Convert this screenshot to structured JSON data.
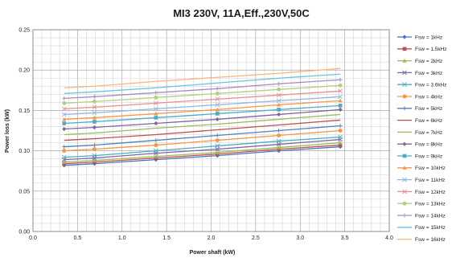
{
  "chart_data": {
    "type": "line",
    "title": "MI3 230V, 11A,Eff.,230V,50C",
    "xlabel": "Power shaft (kW)",
    "ylabel": "Power loss (kW)",
    "xlim": [
      0,
      4
    ],
    "ylim": [
      0,
      0.25
    ],
    "x_ticks": [
      "0.0",
      "0.5",
      "1.0",
      "1.5",
      "2.0",
      "2.5",
      "3.0",
      "3.5",
      "4.0"
    ],
    "y_ticks": [
      "0.00",
      "0.05",
      "0.10",
      "0.15",
      "0.20",
      "0.25"
    ],
    "grid": true,
    "legend_position": "right",
    "x": [
      0.35,
      0.69,
      1.38,
      2.07,
      2.76,
      3.45
    ],
    "series": [
      {
        "name": "Fsw = 1kHz",
        "color": "#4472C4",
        "marker": "diamond",
        "values": [
          0.082,
          0.084,
          0.089,
          0.094,
          0.1,
          0.105
        ]
      },
      {
        "name": "Fsw = 1.5kHz",
        "color": "#C0504D",
        "marker": "square",
        "values": [
          0.084,
          0.086,
          0.091,
          0.096,
          0.102,
          0.107
        ]
      },
      {
        "name": "Fsw = 2kHz",
        "color": "#9BBB59",
        "marker": "triangle",
        "values": [
          0.086,
          0.088,
          0.093,
          0.098,
          0.104,
          0.11
        ]
      },
      {
        "name": "Fsw = 3kHz",
        "color": "#8064A2",
        "marker": "x",
        "values": [
          0.089,
          0.091,
          0.097,
          0.102,
          0.108,
          0.114
        ]
      },
      {
        "name": "Fsw = 3.6kHz",
        "color": "#4BACC6",
        "marker": "x",
        "values": [
          0.092,
          0.094,
          0.1,
          0.106,
          0.112,
          0.117
        ]
      },
      {
        "name": "Fsw = 4kHz",
        "color": "#F79646",
        "marker": "circle",
        "values": [
          0.1,
          0.102,
          0.107,
          0.113,
          0.119,
          0.125
        ]
      },
      {
        "name": "Fsw = 5kHz",
        "color": "#4F81BD",
        "marker": "plus",
        "values": [
          0.105,
          0.107,
          0.113,
          0.119,
          0.125,
          0.131
        ]
      },
      {
        "name": "Fsw = 6kHz",
        "color": "#C0504D",
        "marker": "none",
        "values": [
          0.113,
          0.115,
          0.12,
          0.126,
          0.132,
          0.138
        ]
      },
      {
        "name": "Fsw = 7kHz",
        "color": "#9BBB59",
        "marker": "none",
        "values": [
          0.12,
          0.122,
          0.128,
          0.133,
          0.139,
          0.145
        ]
      },
      {
        "name": "Fsw = 8kHz",
        "color": "#8064A2",
        "marker": "diamond",
        "values": [
          0.127,
          0.129,
          0.134,
          0.139,
          0.145,
          0.151
        ]
      },
      {
        "name": "Fsw = 9kHz",
        "color": "#4BACC6",
        "marker": "square",
        "values": [
          0.134,
          0.136,
          0.141,
          0.146,
          0.151,
          0.156
        ]
      },
      {
        "name": "Fsw = 10kHz",
        "color": "#F79646",
        "marker": "triangle",
        "values": [
          0.139,
          0.141,
          0.146,
          0.151,
          0.157,
          0.162
        ]
      },
      {
        "name": "Fsw = 11kHz",
        "color": "#92B4E0",
        "marker": "x",
        "values": [
          0.145,
          0.147,
          0.152,
          0.157,
          0.162,
          0.167
        ]
      },
      {
        "name": "Fsw = 12kHz",
        "color": "#E6908E",
        "marker": "x",
        "values": [
          0.152,
          0.154,
          0.159,
          0.164,
          0.169,
          0.174
        ]
      },
      {
        "name": "Fsw = 13kHz",
        "color": "#B4CF7E",
        "marker": "circle",
        "values": [
          0.159,
          0.161,
          0.166,
          0.171,
          0.176,
          0.181
        ]
      },
      {
        "name": "Fsw = 14kHz",
        "color": "#A68DC2",
        "marker": "plus",
        "values": [
          0.165,
          0.167,
          0.172,
          0.177,
          0.183,
          0.188
        ]
      },
      {
        "name": "Fsw = 15kHz",
        "color": "#6CC4DC",
        "marker": "none",
        "values": [
          0.171,
          0.173,
          0.178,
          0.184,
          0.19,
          0.195
        ]
      },
      {
        "name": "Fsw = 16kHz",
        "color": "#FBB47C",
        "marker": "none",
        "values": [
          0.178,
          0.18,
          0.186,
          0.191,
          0.196,
          0.202
        ]
      }
    ]
  }
}
